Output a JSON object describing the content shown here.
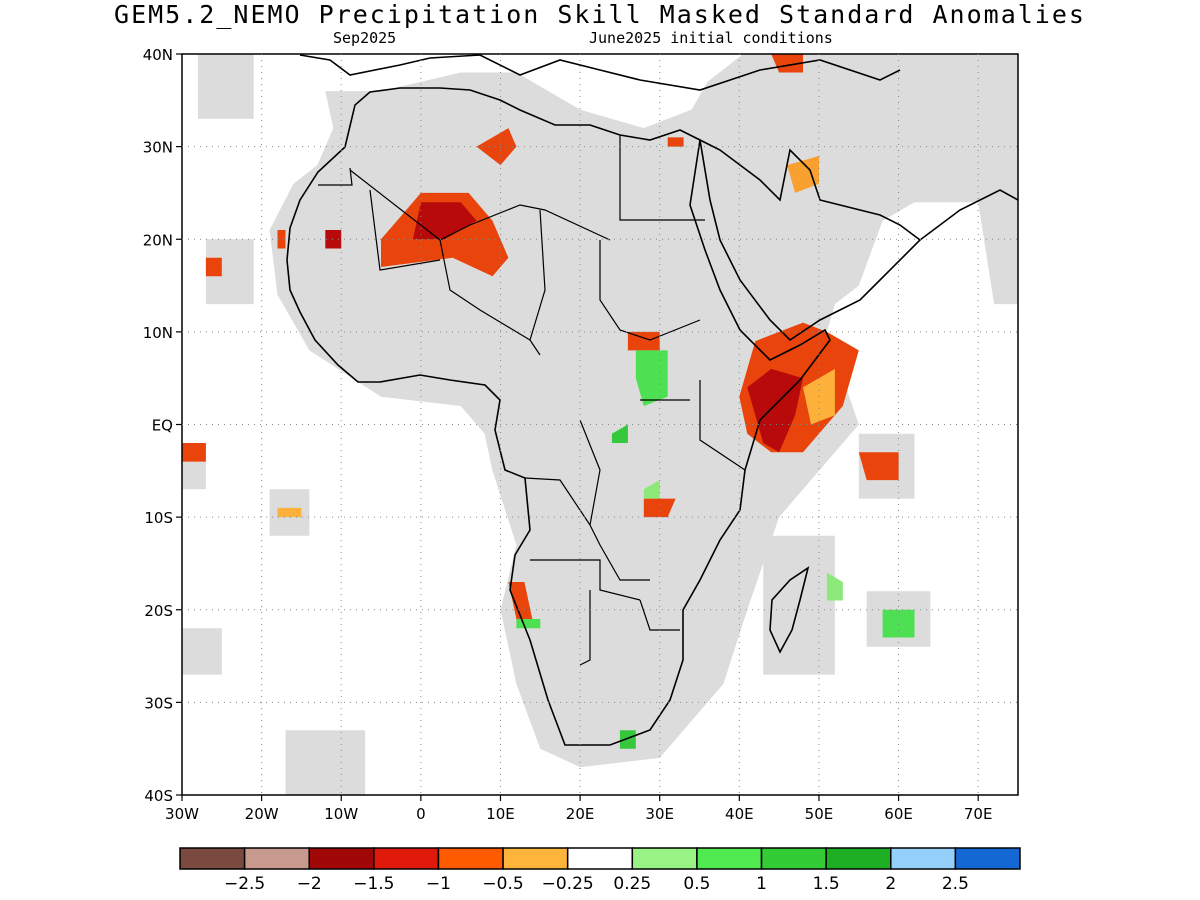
{
  "title": "GEM5.2_NEMO Precipitation Skill Masked Standard Anomalies",
  "subtitle_left": "Sep2025",
  "subtitle_right": "June2025 initial conditions",
  "map": {
    "lon_range": [
      -30,
      75
    ],
    "lat_range": [
      -40,
      40
    ],
    "lat_ticks": [
      {
        "v": 40,
        "label": "40N"
      },
      {
        "v": 30,
        "label": "30N"
      },
      {
        "v": 20,
        "label": "20N"
      },
      {
        "v": 10,
        "label": "10N"
      },
      {
        "v": 0,
        "label": "EQ"
      },
      {
        "v": -10,
        "label": "10S"
      },
      {
        "v": -20,
        "label": "20S"
      },
      {
        "v": -30,
        "label": "30S"
      },
      {
        "v": -40,
        "label": "40S"
      }
    ],
    "lon_ticks": [
      {
        "v": -30,
        "label": "30W"
      },
      {
        "v": -20,
        "label": "20W"
      },
      {
        "v": -10,
        "label": "10W"
      },
      {
        "v": 0,
        "label": "0"
      },
      {
        "v": 10,
        "label": "10E"
      },
      {
        "v": 20,
        "label": "20E"
      },
      {
        "v": 30,
        "label": "30E"
      },
      {
        "v": 40,
        "label": "40E"
      },
      {
        "v": 50,
        "label": "50E"
      },
      {
        "v": 60,
        "label": "60E"
      },
      {
        "v": 70,
        "label": "70E"
      }
    ],
    "grid": true,
    "mask_color": "#dcdcdc",
    "anomaly_regions": [
      {
        "name": "sahel-central",
        "color": "#e8440c",
        "poly": [
          [
            0,
            25
          ],
          [
            6,
            25
          ],
          [
            9,
            22
          ],
          [
            11,
            18
          ],
          [
            9,
            16
          ],
          [
            4,
            18
          ],
          [
            -5,
            17
          ],
          [
            -5,
            20
          ],
          [
            -3,
            22
          ]
        ]
      },
      {
        "name": "sahel-central-core",
        "color": "#b80a0a",
        "poly": [
          [
            0,
            24
          ],
          [
            5,
            24
          ],
          [
            7,
            22
          ],
          [
            3,
            20
          ],
          [
            -1,
            20
          ]
        ]
      },
      {
        "name": "horn-of-africa",
        "color": "#e8440c",
        "poly": [
          [
            42,
            9
          ],
          [
            48,
            11
          ],
          [
            51,
            10
          ],
          [
            55,
            8
          ],
          [
            53,
            2
          ],
          [
            48,
            -3
          ],
          [
            44,
            -3
          ],
          [
            41,
            -1
          ],
          [
            40,
            3
          ],
          [
            41,
            6
          ]
        ]
      },
      {
        "name": "horn-core",
        "color": "#b80a0a",
        "poly": [
          [
            41,
            4
          ],
          [
            44,
            6
          ],
          [
            48,
            5
          ],
          [
            47,
            1
          ],
          [
            45,
            -3
          ],
          [
            43,
            -2
          ]
        ]
      },
      {
        "name": "somalia-south",
        "color": "#fdb03a",
        "poly": [
          [
            48,
            4
          ],
          [
            52,
            6
          ],
          [
            52,
            1
          ],
          [
            49,
            0
          ]
        ]
      },
      {
        "name": "tunisia-libya",
        "color": "#e8440c",
        "poly": [
          [
            7,
            30
          ],
          [
            11,
            32
          ],
          [
            12,
            30
          ],
          [
            10,
            28
          ]
        ]
      },
      {
        "name": "arabia-gulf",
        "color": "#f8a030",
        "poly": [
          [
            46,
            28
          ],
          [
            50,
            29
          ],
          [
            50,
            26
          ],
          [
            47,
            25
          ]
        ]
      },
      {
        "name": "egypt-coast",
        "color": "#e8440c",
        "poly": [
          [
            31,
            31
          ],
          [
            33,
            31
          ],
          [
            33,
            30
          ],
          [
            31,
            30
          ]
        ]
      },
      {
        "name": "turkey-east",
        "color": "#e8440c",
        "poly": [
          [
            44,
            40
          ],
          [
            48,
            40
          ],
          [
            48,
            38
          ],
          [
            45,
            38
          ]
        ]
      },
      {
        "name": "mauritania-west",
        "color": "#b80a0a",
        "poly": [
          [
            -12,
            21
          ],
          [
            -10,
            21
          ],
          [
            -10,
            19
          ],
          [
            -12,
            19
          ]
        ]
      },
      {
        "name": "western-sahara",
        "color": "#e8440c",
        "poly": [
          [
            -18,
            21
          ],
          [
            -17,
            21
          ],
          [
            -17,
            19
          ],
          [
            -18,
            19
          ]
        ]
      },
      {
        "name": "south-sudan-cluster",
        "color": "#e8440c",
        "poly": [
          [
            26,
            10
          ],
          [
            30,
            10
          ],
          [
            30,
            8
          ],
          [
            26,
            8
          ]
        ]
      },
      {
        "name": "central-africa-green",
        "color": "#4de053",
        "poly": [
          [
            27,
            8
          ],
          [
            31,
            8
          ],
          [
            31,
            3
          ],
          [
            28,
            2
          ],
          [
            27,
            5
          ]
        ]
      },
      {
        "name": "congo-small-green",
        "color": "#35c83c",
        "poly": [
          [
            24,
            -1
          ],
          [
            26,
            0
          ],
          [
            26,
            -2
          ],
          [
            24,
            -2
          ]
        ]
      },
      {
        "name": "tanzania-lake",
        "color": "#e8440c",
        "poly": [
          [
            28,
            -8
          ],
          [
            32,
            -8
          ],
          [
            31,
            -10
          ],
          [
            28,
            -10
          ]
        ]
      },
      {
        "name": "malawi-green",
        "color": "#8de87a",
        "poly": [
          [
            28,
            -7
          ],
          [
            30,
            -6
          ],
          [
            30,
            -8
          ],
          [
            28,
            -8
          ]
        ]
      },
      {
        "name": "namibia-coast",
        "color": "#e8440c",
        "poly": [
          [
            11,
            -17
          ],
          [
            13,
            -17
          ],
          [
            14,
            -21
          ],
          [
            12,
            -21
          ]
        ]
      },
      {
        "name": "namibia-green",
        "color": "#4de053",
        "poly": [
          [
            12,
            -21
          ],
          [
            15,
            -21
          ],
          [
            15,
            -22
          ],
          [
            12,
            -22
          ]
        ]
      },
      {
        "name": "seychelles-east",
        "color": "#e8440c",
        "poly": [
          [
            55,
            -3
          ],
          [
            60,
            -3
          ],
          [
            60,
            -6
          ],
          [
            56,
            -6
          ]
        ]
      },
      {
        "name": "madagascar-east-green",
        "color": "#8de87a",
        "poly": [
          [
            51,
            -16
          ],
          [
            53,
            -17
          ],
          [
            53,
            -19
          ],
          [
            51,
            -19
          ]
        ]
      },
      {
        "name": "mauritius-green",
        "color": "#4de053",
        "poly": [
          [
            58,
            -20
          ],
          [
            62,
            -20
          ],
          [
            62,
            -23
          ],
          [
            58,
            -23
          ]
        ]
      },
      {
        "name": "sa-south-green",
        "color": "#35c83c",
        "poly": [
          [
            25,
            -33
          ],
          [
            27,
            -33
          ],
          [
            27,
            -35
          ],
          [
            25,
            -35
          ]
        ]
      },
      {
        "name": "gulf-of-guinea-edge",
        "color": "#e8440c",
        "poly": [
          [
            -30,
            -2
          ],
          [
            -27,
            -2
          ],
          [
            -27,
            -4
          ],
          [
            -30,
            -4
          ]
        ]
      },
      {
        "name": "atlantic-south-small",
        "color": "#fdb03a",
        "poly": [
          [
            -18,
            -9
          ],
          [
            -15,
            -9
          ],
          [
            -15,
            -10
          ],
          [
            -18,
            -10
          ]
        ]
      },
      {
        "name": "cape-verde-red",
        "color": "#e8440c",
        "poly": [
          [
            -27,
            18
          ],
          [
            -25,
            18
          ],
          [
            -25,
            16
          ],
          [
            -27,
            16
          ]
        ]
      }
    ],
    "mask_regions": [
      [
        [
          -12,
          36
        ],
        [
          -5,
          36
        ],
        [
          5,
          38
        ],
        [
          12,
          38
        ],
        [
          20,
          34
        ],
        [
          28,
          32
        ],
        [
          34,
          34
        ],
        [
          36,
          37
        ],
        [
          42,
          41
        ],
        [
          60,
          41
        ],
        [
          75,
          41
        ],
        [
          75,
          13
        ],
        [
          72,
          13
        ],
        [
          70,
          24
        ],
        [
          62,
          24
        ],
        [
          58,
          22
        ],
        [
          55,
          15
        ],
        [
          52,
          13
        ],
        [
          51,
          10
        ],
        [
          55,
          0
        ],
        [
          52,
          -3
        ],
        [
          45,
          -10
        ],
        [
          41,
          -20
        ],
        [
          38,
          -28
        ],
        [
          30,
          -36
        ],
        [
          20,
          -37
        ],
        [
          15,
          -35
        ],
        [
          12,
          -28
        ],
        [
          10,
          -20
        ],
        [
          12,
          -13
        ],
        [
          9,
          -5
        ],
        [
          8,
          -1
        ],
        [
          5,
          2
        ],
        [
          -5,
          3
        ],
        [
          -14,
          8
        ],
        [
          -18,
          14
        ],
        [
          -19,
          21
        ],
        [
          -16,
          26
        ],
        [
          -13,
          28
        ],
        [
          -11,
          32
        ]
      ],
      [
        [
          43,
          -12
        ],
        [
          52,
          -12
        ],
        [
          52,
          -27
        ],
        [
          43,
          -27
        ]
      ],
      [
        [
          -30,
          -22
        ],
        [
          -25,
          -22
        ],
        [
          -25,
          -27
        ],
        [
          -30,
          -27
        ]
      ],
      [
        [
          -17,
          -33
        ],
        [
          -7,
          -33
        ],
        [
          -7,
          -40
        ],
        [
          -17,
          -40
        ]
      ],
      [
        [
          -28,
          40
        ],
        [
          -21,
          40
        ],
        [
          -21,
          33
        ],
        [
          -28,
          33
        ]
      ],
      [
        [
          -27,
          20
        ],
        [
          -21,
          20
        ],
        [
          -21,
          13
        ],
        [
          -27,
          13
        ]
      ],
      [
        [
          -30,
          -2
        ],
        [
          -27,
          -2
        ],
        [
          -27,
          -7
        ],
        [
          -30,
          -7
        ]
      ],
      [
        [
          -19,
          -7
        ],
        [
          -14,
          -7
        ],
        [
          -14,
          -12
        ],
        [
          -19,
          -12
        ]
      ],
      [
        [
          55,
          -1
        ],
        [
          62,
          -1
        ],
        [
          62,
          -8
        ],
        [
          55,
          -8
        ]
      ],
      [
        [
          56,
          -18
        ],
        [
          64,
          -18
        ],
        [
          64,
          -24
        ],
        [
          56,
          -24
        ]
      ]
    ]
  },
  "colorbar": {
    "colors": [
      "#7a4a40",
      "#c89a8e",
      "#a00808",
      "#e01a0a",
      "#fe5a00",
      "#feb43a",
      "#ffffff",
      "#98f284",
      "#50ea50",
      "#34cc36",
      "#1eae24",
      "#94d0fa",
      "#1468d4"
    ],
    "labels": [
      "−2.5",
      "−2",
      "−1.5",
      "−1",
      "−0.5",
      "−0.25",
      "0.25",
      "0.5",
      "1",
      "1.5",
      "2",
      "2.5"
    ]
  }
}
